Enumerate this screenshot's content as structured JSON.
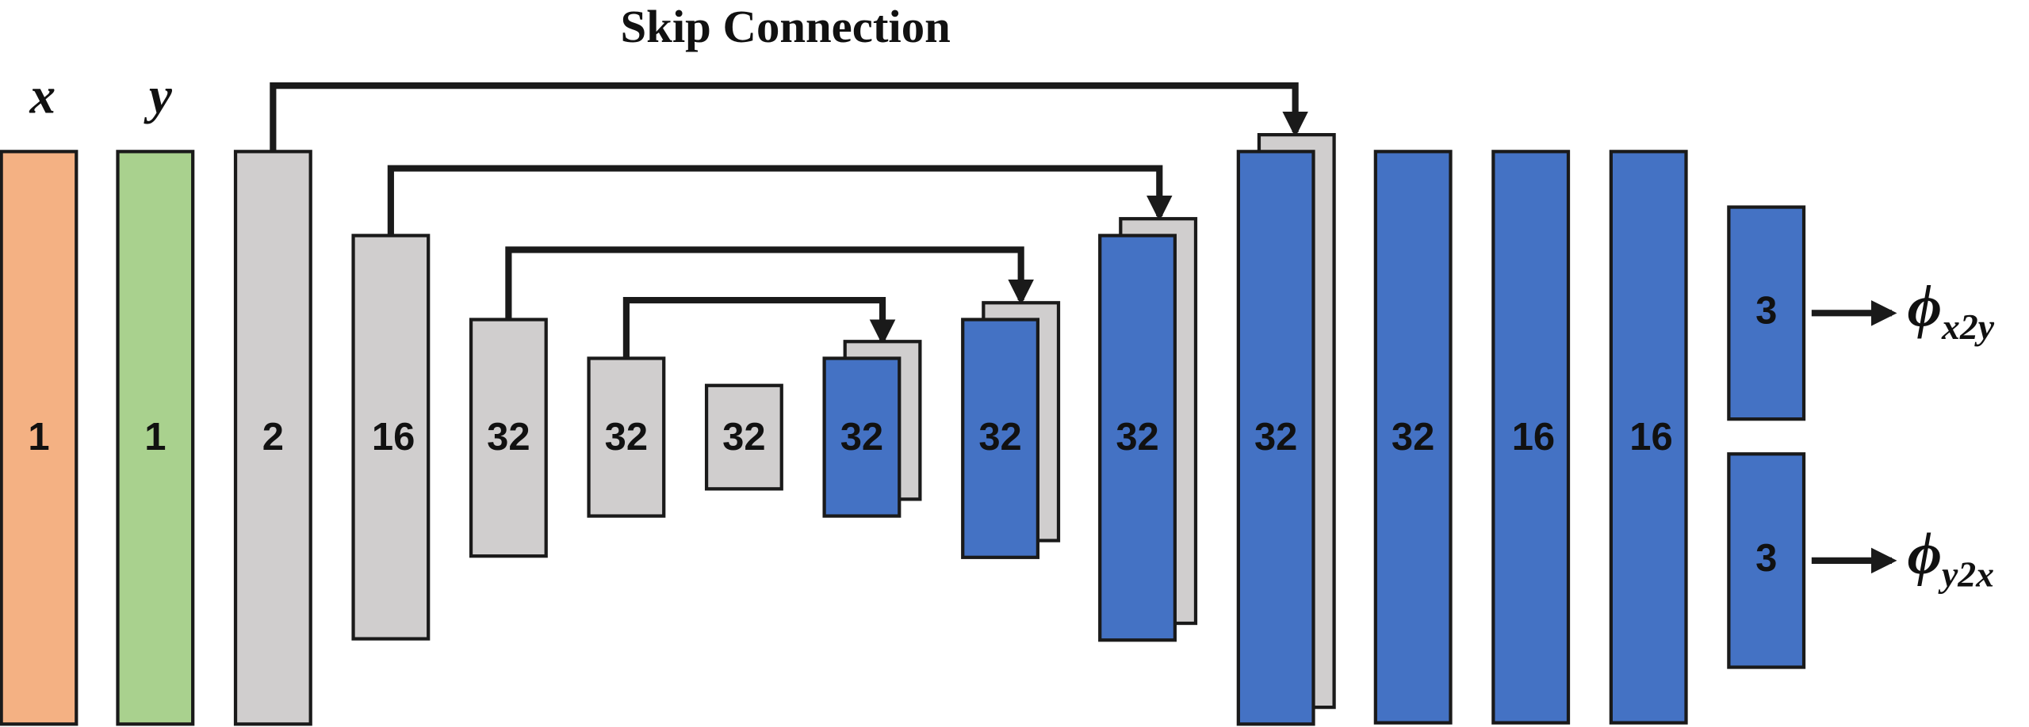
{
  "title": "Skip Connection",
  "inputs": [
    "x",
    "y"
  ],
  "blocks": [
    "1",
    "1",
    "2",
    "16",
    "32",
    "32",
    "32",
    "32",
    "32",
    "32",
    "32",
    "32",
    "16",
    "16"
  ],
  "outputs": [
    {
      "block": "3",
      "symbol": "ϕ",
      "subscript": "x2y"
    },
    {
      "block": "3",
      "symbol": "ϕ",
      "subscript": "y2x"
    }
  ]
}
